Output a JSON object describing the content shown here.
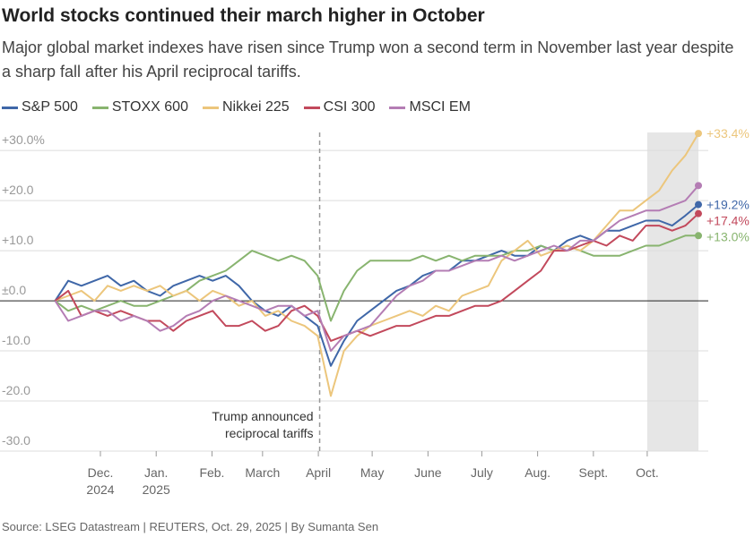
{
  "chart_data": {
    "type": "line",
    "title": "World stocks continued their march higher in October",
    "subtitle": "Major global market indexes have risen since Trump won a second term in November last year despite a sharp fall after his April reciprocal tariffs.",
    "source": "Source: LSEG Datastream | REUTERS, Oct. 29, 2025 | By Sumanta Sen",
    "xlim": [
      2024.844,
      2025.841
    ],
    "ylim": [
      -30,
      33.6
    ],
    "grid": true,
    "legend": "top",
    "xticks": [
      {
        "value": 2024.915,
        "label": [
          "Dec.",
          "2024"
        ]
      },
      {
        "value": 2025.0,
        "label": [
          "Jan.",
          "2025"
        ]
      },
      {
        "value": 2025.085,
        "label": "Feb."
      },
      {
        "value": 2025.162,
        "label": "March"
      },
      {
        "value": 2025.247,
        "label": "April"
      },
      {
        "value": 2025.329,
        "label": "May"
      },
      {
        "value": 2025.414,
        "label": "June"
      },
      {
        "value": 2025.496,
        "label": "July"
      },
      {
        "value": 2025.581,
        "label": "Aug."
      },
      {
        "value": 2025.666,
        "label": "Sept."
      },
      {
        "value": 2025.748,
        "label": "Oct."
      }
    ],
    "yticks": [
      {
        "value": 30,
        "label": "+30.0%"
      },
      {
        "value": 20,
        "label": "+20.0"
      },
      {
        "value": 10,
        "label": "+10.0"
      },
      {
        "value": 0,
        "label": "±0.0"
      },
      {
        "value": -10,
        "label": "-10.0"
      },
      {
        "value": -20,
        "label": "-20.0"
      },
      {
        "value": -30,
        "label": "-30.0"
      }
    ],
    "highlight": [
      2025.748,
      2025.826
    ],
    "annotation": {
      "x": 2025.249,
      "text": [
        "Trump announced",
        "reciprocal tariffs"
      ]
    },
    "x": [
      2024.846,
      2024.866,
      2024.886,
      2024.906,
      2024.926,
      2024.946,
      2024.966,
      2024.986,
      2025.006,
      2025.026,
      2025.046,
      2025.066,
      2025.086,
      2025.106,
      2025.126,
      2025.146,
      2025.166,
      2025.186,
      2025.206,
      2025.226,
      2025.246,
      2025.266,
      2025.286,
      2025.306,
      2025.326,
      2025.346,
      2025.366,
      2025.386,
      2025.406,
      2025.426,
      2025.446,
      2025.466,
      2025.486,
      2025.506,
      2025.526,
      2025.546,
      2025.566,
      2025.586,
      2025.606,
      2025.626,
      2025.646,
      2025.666,
      2025.686,
      2025.706,
      2025.726,
      2025.746,
      2025.766,
      2025.786,
      2025.806,
      2025.826
    ],
    "series": [
      {
        "name": "S&P 500",
        "color": "#3f67a8",
        "end_label": "+19.2%",
        "values": [
          0,
          4,
          3,
          4,
          5,
          3,
          4,
          2,
          1,
          3,
          4,
          5,
          4,
          5,
          3,
          0,
          -2,
          -3,
          -1,
          -3,
          -5,
          -13,
          -8,
          -4,
          -2,
          0,
          2,
          3,
          5,
          6,
          6,
          8,
          8,
          9,
          10,
          9,
          9,
          11,
          10,
          12,
          13,
          12,
          14,
          14,
          15,
          16,
          16,
          15,
          17,
          19.2
        ]
      },
      {
        "name": "STOXX 600",
        "color": "#88b46f",
        "end_label": "+13.0%",
        "values": [
          0,
          -2,
          -1,
          -2,
          -1,
          0,
          -1,
          -1,
          0,
          1,
          2,
          4,
          5,
          6,
          8,
          10,
          9,
          8,
          9,
          8,
          5,
          -4,
          2,
          6,
          8,
          8,
          8,
          8,
          9,
          8,
          9,
          8,
          9,
          9,
          9,
          10,
          10,
          11,
          10,
          11,
          10,
          9,
          9,
          9,
          10,
          11,
          11,
          12,
          13,
          13.0
        ]
      },
      {
        "name": "Nikkei 225",
        "color": "#ecc67c",
        "end_label": "+33.4%",
        "values": [
          0,
          1,
          2,
          0,
          3,
          2,
          3,
          2,
          3,
          1,
          2,
          0,
          2,
          1,
          -1,
          0,
          -3,
          -2,
          -4,
          -5,
          -7,
          -19,
          -10,
          -7,
          -5,
          -4,
          -3,
          -2,
          -3,
          -1,
          -2,
          1,
          2,
          3,
          8,
          10,
          12,
          9,
          10,
          11,
          10,
          12,
          15,
          18,
          18,
          20,
          22,
          26,
          29,
          33.4
        ]
      },
      {
        "name": "CSI 300",
        "color": "#c2495c",
        "end_label": "+17.4%",
        "values": [
          0,
          2,
          -3,
          -2,
          -3,
          -2,
          -3,
          -4,
          -4,
          -6,
          -4,
          -3,
          -2,
          -5,
          -5,
          -4,
          -6,
          -5,
          -2,
          -1,
          -3,
          -8,
          -7,
          -6,
          -7,
          -6,
          -5,
          -5,
          -4,
          -3,
          -3,
          -2,
          -1,
          -1,
          0,
          2,
          4,
          6,
          10,
          10,
          11,
          12,
          11,
          13,
          12,
          15,
          15,
          14,
          15,
          17.4
        ]
      },
      {
        "name": "MSCI EM",
        "color": "#b47db4",
        "values": [
          0,
          -4,
          -3,
          -2,
          -2,
          -4,
          -3,
          -4,
          -6,
          -5,
          -3,
          -2,
          0,
          1,
          0,
          -1,
          -2,
          -1,
          -1,
          -3,
          -2,
          -10,
          -7,
          -6,
          -5,
          -2,
          1,
          3,
          4,
          6,
          6,
          7,
          8,
          8,
          9,
          8,
          9,
          10,
          11,
          10,
          12,
          12,
          14,
          16,
          17,
          18,
          18,
          19,
          20,
          23
        ]
      }
    ]
  }
}
